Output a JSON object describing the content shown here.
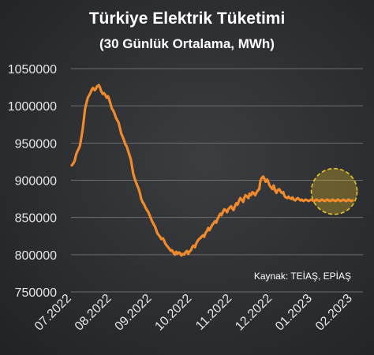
{
  "chart_data": {
    "type": "line",
    "title": "Türkiye Elektrik Tüketimi",
    "subtitle": "(30 Günlük Ortalama, MWh)",
    "xlabel": "",
    "ylabel": "",
    "source": "Kaynak: TEİAŞ, EPİAŞ",
    "ylim": [
      750000,
      1050000
    ],
    "yticks": [
      "1050000",
      "1000000",
      "950000",
      "900000",
      "850000",
      "800000",
      "750000"
    ],
    "ytick_values": [
      1050000,
      1000000,
      950000,
      900000,
      850000,
      800000,
      750000
    ],
    "xticks": [
      "07.2022",
      "08.2022",
      "09.2022",
      "10.2022",
      "11.2022",
      "12.2022",
      "01.2023",
      "02.2023"
    ],
    "grid": true,
    "highlight": {
      "description": "dashed circle",
      "x_range": [
        "01.2023",
        "02.2023"
      ],
      "y_center": 885000
    },
    "series": [
      {
        "color": "#f08a2c",
        "x": [
          0.0,
          0.03,
          0.07,
          0.1,
          0.13,
          0.17,
          0.2,
          0.23,
          0.27,
          0.3,
          0.33,
          0.37,
          0.4,
          0.43,
          0.47,
          0.5,
          0.53,
          0.57,
          0.6,
          0.63,
          0.67,
          0.7,
          0.73,
          0.77,
          0.8,
          0.83,
          0.87,
          0.9,
          0.93,
          0.97,
          1.0,
          1.03,
          1.07,
          1.1,
          1.13,
          1.17,
          1.2,
          1.23,
          1.27,
          1.3,
          1.33,
          1.37,
          1.4,
          1.43,
          1.47,
          1.5,
          1.53,
          1.57,
          1.6,
          1.63,
          1.67,
          1.7,
          1.73,
          1.77,
          1.8,
          1.83,
          1.87,
          1.9,
          1.93,
          1.97,
          2.0,
          2.03,
          2.07,
          2.1,
          2.13,
          2.17,
          2.2,
          2.23,
          2.27,
          2.3,
          2.33,
          2.37,
          2.4,
          2.43,
          2.47,
          2.5,
          2.53,
          2.57,
          2.6,
          2.63,
          2.67,
          2.7,
          2.73,
          2.77,
          2.8,
          2.83,
          2.87,
          2.9,
          2.93,
          2.97,
          3.0,
          3.03,
          3.07,
          3.1,
          3.13,
          3.17,
          3.2,
          3.23,
          3.27,
          3.3,
          3.33,
          3.37,
          3.4,
          3.43,
          3.47,
          3.5,
          3.53,
          3.57,
          3.6,
          3.63,
          3.67,
          3.7,
          3.73,
          3.77,
          3.8,
          3.83,
          3.87,
          3.9,
          3.93,
          3.97,
          4.0,
          4.03,
          4.07,
          4.1,
          4.13,
          4.17,
          4.2,
          4.23,
          4.27,
          4.3,
          4.33,
          4.37,
          4.4,
          4.43,
          4.47,
          4.5,
          4.53,
          4.57,
          4.6,
          4.63,
          4.67,
          4.7,
          4.73,
          4.77,
          4.8,
          4.83,
          4.87,
          4.9,
          4.93,
          4.97,
          5.0,
          5.03,
          5.07,
          5.1,
          5.13,
          5.17,
          5.2,
          5.23,
          5.27,
          5.3,
          5.33,
          5.37,
          5.4,
          5.43,
          5.47,
          5.5,
          5.53,
          5.57,
          5.6,
          5.63,
          5.67,
          5.7,
          5.73,
          5.77,
          5.8,
          5.83,
          5.87,
          5.9,
          5.93,
          5.97,
          6.0,
          6.03,
          6.07,
          6.1,
          6.13,
          6.17,
          6.2,
          6.23,
          6.27,
          6.3,
          6.33,
          6.37,
          6.4,
          6.43,
          6.47,
          6.5,
          6.53,
          6.57,
          6.6,
          6.63,
          6.67,
          6.7,
          6.73,
          6.77,
          6.8,
          6.83,
          6.87,
          6.9,
          6.93,
          6.97,
          7.0
        ],
        "values": [
          920000,
          922000,
          926000,
          933000,
          938000,
          942000,
          946000,
          955000,
          968000,
          982000,
          996000,
          1005000,
          1011000,
          1014000,
          1018000,
          1022000,
          1024000,
          1021000,
          1023000,
          1026000,
          1028000,
          1025000,
          1020000,
          1016000,
          1017000,
          1015000,
          1011000,
          1013000,
          1009000,
          1002000,
          996000,
          994000,
          989000,
          984000,
          981000,
          977000,
          970000,
          963000,
          958000,
          954000,
          949000,
          945000,
          940000,
          935000,
          928000,
          919000,
          909000,
          902000,
          897000,
          893000,
          888000,
          882000,
          875000,
          870000,
          868000,
          864000,
          860000,
          858000,
          854000,
          849000,
          845000,
          842000,
          838000,
          834000,
          829000,
          826000,
          824000,
          821000,
          822000,
          819000,
          815000,
          812000,
          810000,
          808000,
          805000,
          806000,
          803000,
          800000,
          804000,
          801000,
          803000,
          802000,
          799000,
          801000,
          800000,
          803000,
          805000,
          801000,
          804000,
          806000,
          810000,
          812000,
          810000,
          815000,
          818000,
          821000,
          822000,
          824000,
          826000,
          824000,
          829000,
          832000,
          836000,
          833000,
          837000,
          840000,
          842000,
          845000,
          843000,
          848000,
          852000,
          855000,
          853000,
          858000,
          861000,
          860000,
          857000,
          861000,
          863000,
          865000,
          862000,
          860000,
          866000,
          869000,
          867000,
          873000,
          876000,
          874000,
          871000,
          877000,
          880000,
          878000,
          876000,
          882000,
          880000,
          884000,
          883000,
          880000,
          883000,
          886000,
          888000,
          899000,
          903000,
          905000,
          902000,
          898000,
          901000,
          897000,
          893000,
          890000,
          888000,
          893000,
          886000,
          883000,
          887000,
          888000,
          885000,
          883000,
          884000,
          879000,
          877000,
          876000,
          878000,
          876000,
          875000,
          877000,
          874000,
          873000,
          875000,
          876000,
          874000,
          873000,
          874000,
          872000,
          873000,
          874000,
          873000,
          872000,
          873000,
          874000,
          873000,
          872000,
          873000,
          874000,
          873000,
          872000,
          873000,
          874000,
          873000,
          872000,
          873000,
          874000,
          873000,
          872000,
          873000,
          874000,
          873000,
          872000,
          873000,
          874000,
          873000,
          872000,
          873000,
          874000,
          873000,
          872000,
          873000,
          874000,
          873000,
          872000,
          873000
        ]
      }
    ]
  }
}
